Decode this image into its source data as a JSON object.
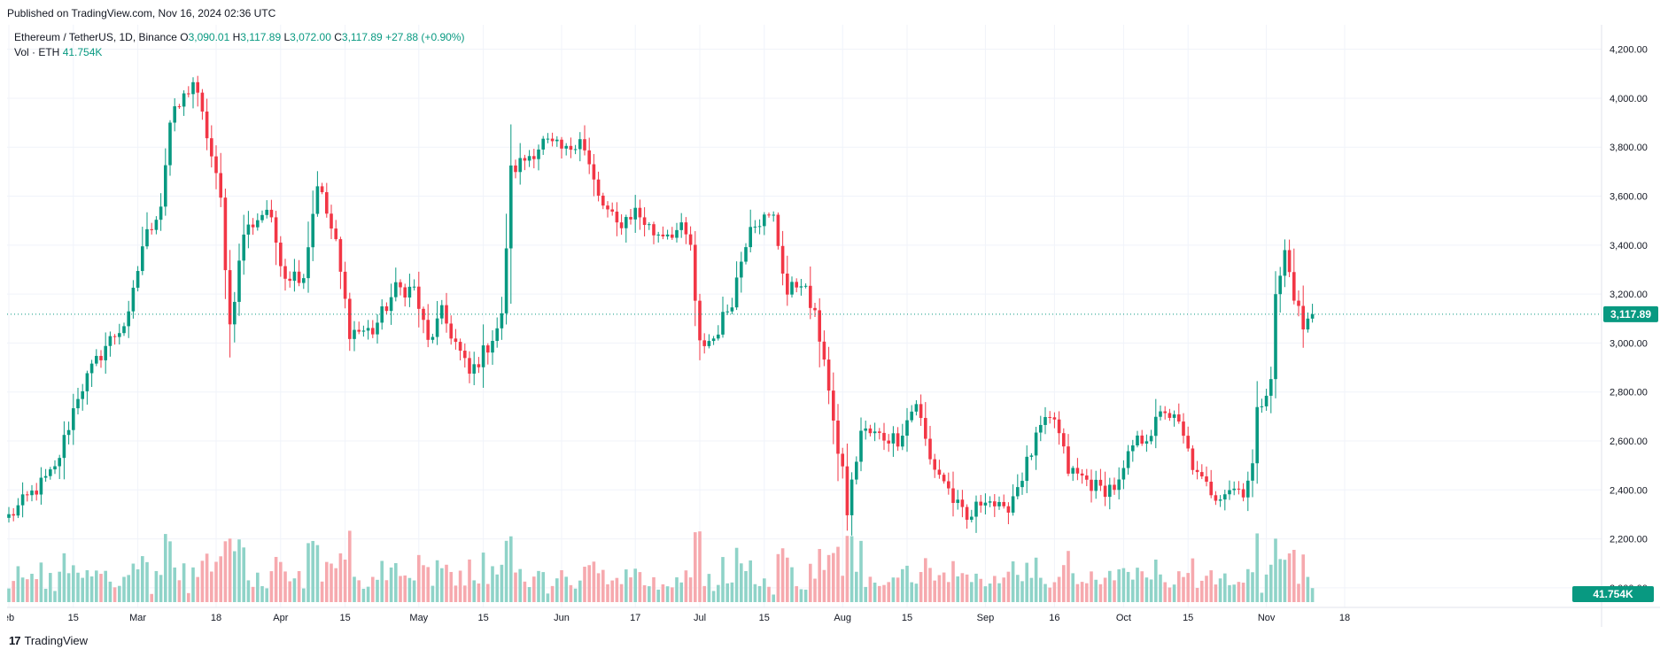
{
  "header": {
    "published": "Published on TradingView.com, Nov 16, 2024 02:36 UTC"
  },
  "legend": {
    "symbol": "Ethereum / TetherUS, 1D, Binance",
    "o_label": "O",
    "o": "3,090.01",
    "h_label": "H",
    "h": "3,117.89",
    "l_label": "L",
    "l": "3,072.00",
    "c_label": "C",
    "c": "3,117.89",
    "change": "+27.88 (+0.90%)",
    "vol_label": "Vol · ETH",
    "vol": "41.754K"
  },
  "footer": {
    "logo": "17",
    "brand": "TradingView"
  },
  "colors": {
    "up": "#089981",
    "down": "#f23645",
    "vol_up": "#8fd3c8",
    "vol_down": "#f6a9ae",
    "grid": "#f0f3fa"
  },
  "chart_data": {
    "type": "candlestick",
    "ylim": [
      1920,
      4300
    ],
    "y_ticks": [
      "4,200.00",
      "4,000.00",
      "3,800.00",
      "3,600.00",
      "3,400.00",
      "3,200.00",
      "3,000.00",
      "2,800.00",
      "2,600.00",
      "2,400.00",
      "2,200.00",
      "2,000.00"
    ],
    "y_tick_values": [
      4200,
      4000,
      3800,
      3600,
      3400,
      3200,
      3000,
      2800,
      2600,
      2400,
      2200,
      2000
    ],
    "x_ticks": [
      {
        "label": "eb",
        "day": 0
      },
      {
        "label": "15",
        "day": 14
      },
      {
        "label": "Mar",
        "day": 28
      },
      {
        "label": "18",
        "day": 45
      },
      {
        "label": "Apr",
        "day": 59
      },
      {
        "label": "15",
        "day": 73
      },
      {
        "label": "May",
        "day": 89
      },
      {
        "label": "15",
        "day": 103
      },
      {
        "label": "Jun",
        "day": 120
      },
      {
        "label": "17",
        "day": 136
      },
      {
        "label": "Jul",
        "day": 150
      },
      {
        "label": "15",
        "day": 164
      },
      {
        "label": "Aug",
        "day": 181
      },
      {
        "label": "15",
        "day": 195
      },
      {
        "label": "Sep",
        "day": 212
      },
      {
        "label": "16",
        "day": 227
      },
      {
        "label": "Oct",
        "day": 242
      },
      {
        "label": "15",
        "day": 256
      },
      {
        "label": "Nov",
        "day": 273
      },
      {
        "label": "18",
        "day": 290
      }
    ],
    "last_price": "3,117.89",
    "last_price_value": 3117.89,
    "last_volume": "41.754K",
    "anchors": [
      [
        0,
        2290
      ],
      [
        10,
        2480
      ],
      [
        15,
        2790
      ],
      [
        21,
        2990
      ],
      [
        26,
        3100
      ],
      [
        29,
        3400
      ],
      [
        33,
        3570
      ],
      [
        35,
        3900
      ],
      [
        40,
        4070
      ],
      [
        43,
        3850
      ],
      [
        46,
        3580
      ],
      [
        48,
        3070
      ],
      [
        51,
        3450
      ],
      [
        56,
        3550
      ],
      [
        60,
        3280
      ],
      [
        64,
        3280
      ],
      [
        67,
        3660
      ],
      [
        71,
        3400
      ],
      [
        74,
        3050
      ],
      [
        79,
        3050
      ],
      [
        84,
        3220
      ],
      [
        88,
        3220
      ],
      [
        91,
        3000
      ],
      [
        94,
        3120
      ],
      [
        97,
        3000
      ],
      [
        100,
        2870
      ],
      [
        104,
        2990
      ],
      [
        107,
        3100
      ],
      [
        109,
        3700
      ],
      [
        116,
        3820
      ],
      [
        121,
        3780
      ],
      [
        124,
        3850
      ],
      [
        128,
        3590
      ],
      [
        132,
        3480
      ],
      [
        136,
        3540
      ],
      [
        140,
        3450
      ],
      [
        146,
        3460
      ],
      [
        148,
        3400
      ],
      [
        149,
        3150
      ],
      [
        150,
        2990
      ],
      [
        153,
        3020
      ],
      [
        157,
        3180
      ],
      [
        161,
        3500
      ],
      [
        166,
        3510
      ],
      [
        169,
        3200
      ],
      [
        172,
        3260
      ],
      [
        175,
        3100
      ],
      [
        177,
        2950
      ],
      [
        179,
        2650
      ],
      [
        181,
        2480
      ],
      [
        182,
        2310
      ],
      [
        185,
        2640
      ],
      [
        189,
        2620
      ],
      [
        193,
        2610
      ],
      [
        197,
        2760
      ],
      [
        200,
        2520
      ],
      [
        203,
        2440
      ],
      [
        205,
        2360
      ],
      [
        208,
        2270
      ],
      [
        212,
        2380
      ],
      [
        216,
        2300
      ],
      [
        220,
        2460
      ],
      [
        224,
        2650
      ],
      [
        227,
        2690
      ],
      [
        230,
        2480
      ],
      [
        233,
        2450
      ],
      [
        237,
        2400
      ],
      [
        241,
        2420
      ],
      [
        244,
        2580
      ],
      [
        248,
        2640
      ],
      [
        251,
        2730
      ],
      [
        254,
        2660
      ],
      [
        258,
        2450
      ],
      [
        262,
        2380
      ],
      [
        265,
        2410
      ],
      [
        268,
        2400
      ],
      [
        270,
        2500
      ],
      [
        271,
        2710
      ],
      [
        274,
        2870
      ],
      [
        275,
        3180
      ],
      [
        277,
        3370
      ],
      [
        279,
        3200
      ],
      [
        281,
        3060
      ],
      [
        282,
        3090
      ],
      [
        283,
        3118
      ]
    ],
    "last_close": 3117.89
  }
}
